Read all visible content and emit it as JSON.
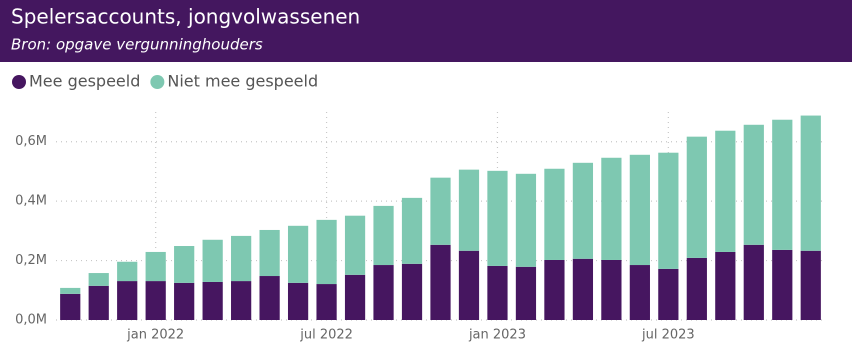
{
  "chart_data": {
    "type": "stacked-bar",
    "title": "Spelersaccounts, jongvolwassenen",
    "subtitle": "Bron: opgave vergunninghouders",
    "categories": [
      null,
      null,
      null,
      "jan 2022",
      null,
      null,
      null,
      null,
      null,
      "jul 2022",
      null,
      null,
      null,
      null,
      null,
      "jan 2023",
      null,
      null,
      null,
      null,
      null,
      "jul 2023",
      null,
      null,
      null,
      null,
      null
    ],
    "series": [
      {
        "name": "Mee gespeeld",
        "color": "#461660",
        "values": [
          88000,
          115000,
          131000,
          131000,
          125000,
          128000,
          131000,
          148000,
          125000,
          121000,
          152000,
          185000,
          189000,
          253000,
          233000,
          182000,
          179000,
          202000,
          206000,
          202000,
          185000,
          172000,
          209000,
          229000,
          253000,
          236000,
          233000
        ]
      },
      {
        "name": "Niet mee gespeeld",
        "color": "#7ec8b1",
        "values": [
          20000,
          43000,
          65000,
          98000,
          124000,
          142000,
          152000,
          155000,
          192000,
          216000,
          199000,
          199000,
          222000,
          226000,
          273000,
          320000,
          313000,
          307000,
          323000,
          344000,
          371000,
          391000,
          408000,
          408000,
          404000,
          438000,
          455000
        ]
      }
    ],
    "ylim": [
      0,
      700000
    ],
    "yticks": [
      {
        "value": 0,
        "label": "0,0M"
      },
      {
        "value": 200000,
        "label": "0,2M"
      },
      {
        "value": 400000,
        "label": "0,4M"
      },
      {
        "value": 600000,
        "label": "0,6M"
      }
    ],
    "grid": true,
    "legend": "top-left"
  }
}
